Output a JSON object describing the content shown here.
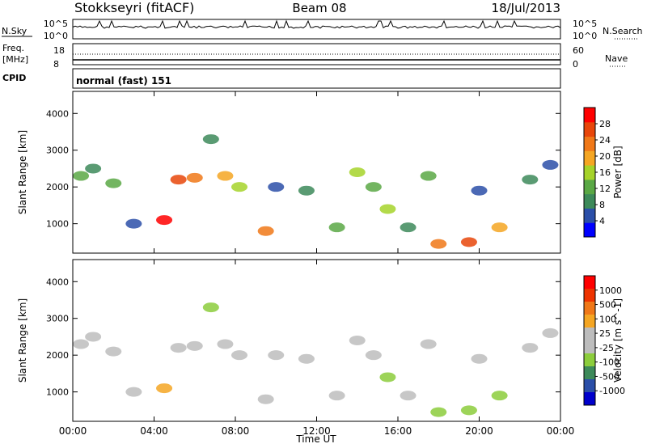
{
  "header": {
    "station": "Stokkseyri (fitACF)",
    "beam": "Beam 08",
    "date": "18/Jul/2013"
  },
  "nsky_panel": {
    "left_label": "N.Sky",
    "left_ticks": [
      "10^5",
      "10^0"
    ],
    "right_label": "N.Search",
    "right_ticks": [
      "10^5",
      "10^0"
    ]
  },
  "freq_panel": {
    "left_label_1": "Freq.",
    "left_label_2": "[MHz]",
    "left_ticks": [
      "18",
      "8"
    ],
    "right_label": "Nave",
    "right_ticks": [
      "60",
      "0"
    ]
  },
  "cpid_panel": {
    "label": "CPID",
    "value": "normal (fast) 151"
  },
  "x_axis": {
    "label": "Time UT",
    "ticks": [
      "00:00",
      "04:00",
      "08:00",
      "12:00",
      "16:00",
      "20:00",
      "00:00"
    ]
  },
  "colors": {
    "power_scale": [
      "#0000ff",
      "#2b4fa8",
      "#3d8a5a",
      "#5aa845",
      "#a6d32a",
      "#f5a623",
      "#f07818",
      "#e8460a",
      "#ff0000"
    ],
    "velocity_scale": [
      "#ff0000",
      "#ee3300",
      "#f07818",
      "#f5a623",
      "#bdbdbd",
      "#bdbdbd",
      "#8ccd3c",
      "#3d8a5a",
      "#2b4fa8",
      "#0000cc"
    ]
  },
  "chart_data": [
    {
      "type": "heatmap",
      "title": "",
      "xlabel": "Time UT",
      "ylabel": "Slant Range [km]",
      "xlim": [
        0,
        24
      ],
      "ylim": [
        200,
        4600
      ],
      "y_ticks": [
        "1000",
        "2000",
        "3000",
        "4000"
      ],
      "colorbar": {
        "label": "Power [dB]",
        "ticks": [
          "4",
          "8",
          "12",
          "16",
          "20",
          "24",
          "28"
        ],
        "range": [
          0,
          30
        ]
      },
      "series": [
        {
          "name": "",
          "x": [
            0.4,
            1.0,
            2.0,
            3.0,
            4.5,
            5.2,
            6.0,
            6.8,
            7.5,
            8.2,
            9.5,
            10.0,
            11.5,
            13.0,
            14.0,
            14.8,
            15.5,
            16.5,
            17.5,
            18.0,
            19.5,
            20.0,
            21.0,
            22.5,
            23.5
          ],
          "y": [
            2300,
            2500,
            2100,
            1000,
            1100,
            2200,
            2250,
            3300,
            2300,
            2000,
            800,
            2000,
            1900,
            900,
            2400,
            2000,
            1400,
            900,
            2300,
            450,
            500,
            1900,
            900,
            2200,
            2600
          ],
          "values": [
            12,
            8,
            10,
            6,
            28,
            26,
            22,
            8,
            18,
            14,
            20,
            6,
            8,
            10,
            14,
            10,
            16,
            8,
            10,
            22,
            26,
            6,
            18,
            8,
            6
          ]
        }
      ]
    },
    {
      "type": "heatmap",
      "title": "",
      "xlabel": "Time UT",
      "ylabel": "Slant Range [km]",
      "xlim": [
        0,
        24
      ],
      "ylim": [
        200,
        4600
      ],
      "y_ticks": [
        "1000",
        "2000",
        "3000",
        "4000"
      ],
      "colorbar": {
        "label": "Velocity [m s^-1]",
        "ticks": [
          "1000",
          "500",
          "100",
          "25",
          "-25",
          "-100",
          "-500",
          "-1000"
        ],
        "range": [
          -1200,
          1200
        ]
      },
      "series": [
        {
          "name": "",
          "x": [
            0.4,
            1.0,
            2.0,
            3.0,
            4.5,
            5.2,
            6.0,
            6.8,
            7.5,
            8.2,
            9.5,
            10.0,
            11.5,
            13.0,
            14.0,
            14.8,
            15.5,
            16.5,
            17.5,
            18.0,
            19.5,
            20.0,
            21.0,
            22.5,
            23.5
          ],
          "y": [
            2300,
            2500,
            2100,
            1000,
            1100,
            2200,
            2250,
            3300,
            2300,
            2000,
            800,
            2000,
            1900,
            900,
            2400,
            2000,
            1400,
            900,
            2300,
            450,
            500,
            1900,
            900,
            2200,
            2600
          ],
          "values": [
            0,
            0,
            0,
            150,
            300,
            0,
            0,
            -300,
            0,
            0,
            0,
            0,
            0,
            0,
            0,
            -150,
            -400,
            0,
            0,
            -400,
            -400,
            -200,
            -300,
            0,
            0
          ]
        }
      ]
    }
  ]
}
